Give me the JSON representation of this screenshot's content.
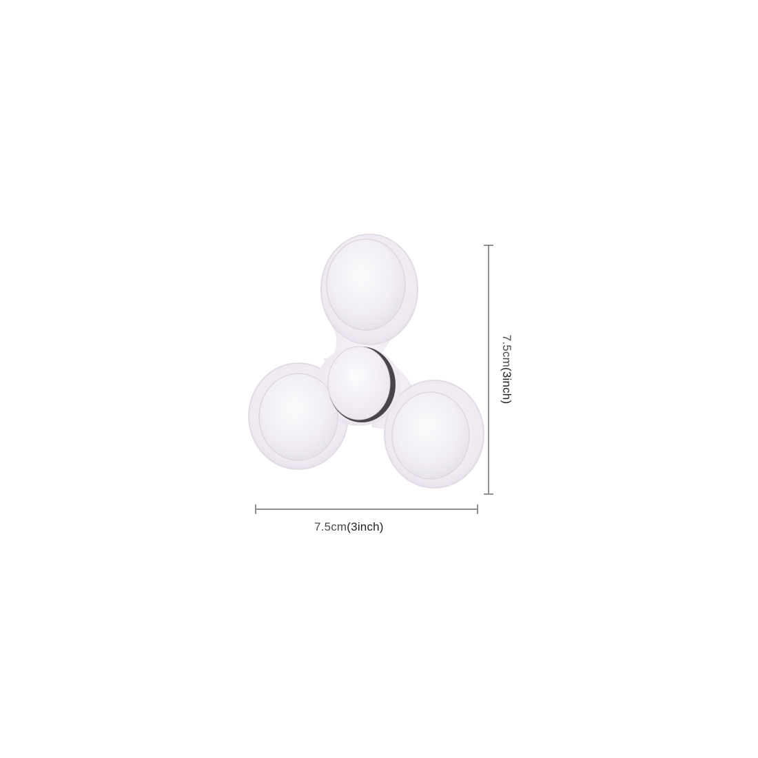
{
  "product": {
    "name": "fidget-spinner",
    "body_color": "#f1ecf4",
    "cap_color": "#f6f3f8",
    "bearing_color": "#4a4448"
  },
  "dimensions": {
    "width": {
      "metric": "7.5cm",
      "imperial": "(3inch)"
    },
    "height": {
      "metric": "7.5cm",
      "imperial": "(3inch)"
    },
    "line_color": "#6e6e6e"
  }
}
